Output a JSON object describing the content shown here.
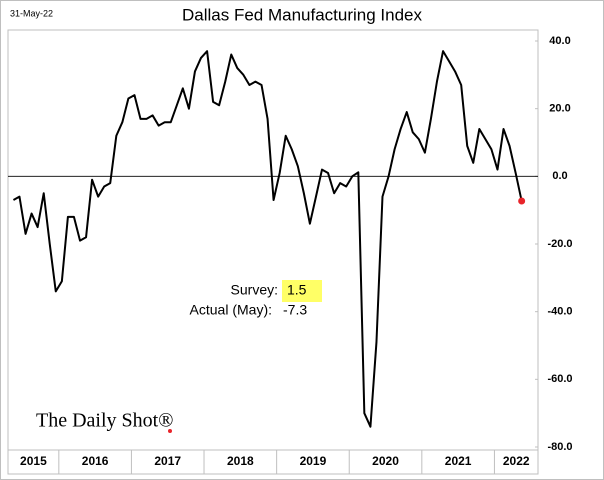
{
  "chart_data": {
    "type": "line",
    "title": "Dallas Fed Manufacturing Index",
    "date_note": "31-May-22",
    "watermark": "The Daily Shot®",
    "annotations": {
      "survey_label": "Survey:",
      "survey_value": "1.5",
      "actual_label": "Actual (May):",
      "actual_value": "-7.3"
    },
    "x": [
      2015.375,
      2015.458,
      2015.542,
      2015.625,
      2015.708,
      2015.792,
      2015.875,
      2015.958,
      2016.042,
      2016.125,
      2016.208,
      2016.292,
      2016.375,
      2016.458,
      2016.542,
      2016.625,
      2016.708,
      2016.792,
      2016.875,
      2016.958,
      2017.042,
      2017.125,
      2017.208,
      2017.292,
      2017.375,
      2017.458,
      2017.542,
      2017.625,
      2017.708,
      2017.792,
      2017.875,
      2017.958,
      2018.042,
      2018.125,
      2018.208,
      2018.292,
      2018.375,
      2018.458,
      2018.542,
      2018.625,
      2018.708,
      2018.792,
      2018.875,
      2018.958,
      2019.042,
      2019.125,
      2019.208,
      2019.292,
      2019.375,
      2019.458,
      2019.542,
      2019.625,
      2019.708,
      2019.792,
      2019.875,
      2019.958,
      2020.042,
      2020.125,
      2020.208,
      2020.292,
      2020.375,
      2020.458,
      2020.542,
      2020.625,
      2020.708,
      2020.792,
      2020.875,
      2020.958,
      2021.042,
      2021.125,
      2021.208,
      2021.292,
      2021.375,
      2021.458,
      2021.542,
      2021.625,
      2021.708,
      2021.792,
      2021.875,
      2021.958,
      2022.042,
      2022.125,
      2022.208,
      2022.292,
      2022.375
    ],
    "series": [
      {
        "name": "Dallas Fed Manufacturing Index",
        "color": "#000000",
        "values": [
          -7,
          -6,
          -17,
          -11,
          -15,
          -5,
          -20,
          -34,
          -31,
          -12,
          -12,
          -19,
          -18,
          -1,
          -6,
          -3,
          -2,
          12,
          16,
          23,
          24,
          17,
          17,
          18,
          15,
          16,
          16,
          21,
          26,
          20,
          31,
          35,
          37,
          22,
          21,
          28,
          36,
          32,
          30,
          27,
          28,
          27,
          17,
          -7,
          1,
          12,
          8,
          3,
          -5,
          -14,
          -6,
          2,
          1,
          -5,
          -2,
          -3,
          0,
          1.2,
          -70,
          -74,
          -49,
          -6,
          0,
          8,
          14,
          19,
          13,
          11,
          7,
          17,
          28,
          37,
          34,
          31,
          27,
          9,
          4,
          14,
          11,
          8,
          2,
          14,
          9,
          1,
          -7.3
        ]
      }
    ],
    "last_point_color": "#e8242a",
    "xlim": [
      2015.3,
      2022.6
    ],
    "xticks": [
      2016,
      2017,
      2018,
      2019,
      2020,
      2021,
      2022
    ],
    "year_labels": [
      "2015",
      "2016",
      "2017",
      "2018",
      "2019",
      "2020",
      "2021",
      "2022"
    ],
    "ylim": [
      -80,
      40
    ],
    "yticks": [
      {
        "value": 40,
        "label": "40.0"
      },
      {
        "value": 20,
        "label": "20.0"
      },
      {
        "value": 0,
        "label": "0.0"
      },
      {
        "value": -20,
        "label": "-20.0"
      },
      {
        "value": -40,
        "label": "-40.0"
      },
      {
        "value": -60,
        "label": "-60.0"
      },
      {
        "value": -80,
        "label": "-80.0"
      }
    ]
  }
}
